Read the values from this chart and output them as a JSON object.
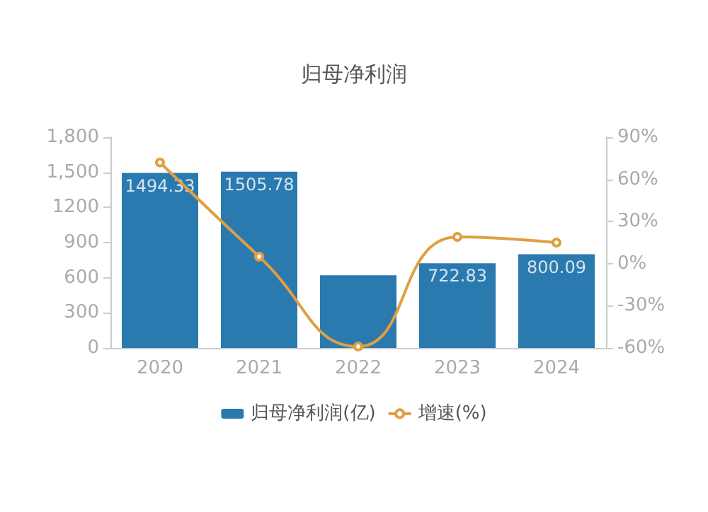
{
  "chart_data": {
    "type": "bar",
    "title": "归母净利润",
    "categories": [
      "2020",
      "2021",
      "2022",
      "2023",
      "2024"
    ],
    "series": [
      {
        "name": "归母净利润(亿)",
        "color": "#2a7ab0",
        "values": [
          1494.33,
          1505.78,
          620,
          722.83,
          800.09
        ],
        "value_labels": [
          "1494.33",
          "1505.78",
          null,
          "722.83",
          "800.09"
        ]
      },
      {
        "name": "增速(%)",
        "type": "line",
        "axis": "y2",
        "color": "#e0a040",
        "values": [
          72,
          5,
          -59,
          19,
          15
        ],
        "marker": "circle"
      }
    ],
    "ylim": [
      0,
      1800
    ],
    "yticks": [
      0,
      300,
      600,
      900,
      1200,
      {
        "value": 1500,
        "label": "1,500"
      },
      {
        "value": 1800,
        "label": "1,800"
      }
    ],
    "y2lim": [
      -60,
      90
    ],
    "y2ticks": [
      {
        "value": -60,
        "label": "-60%"
      },
      {
        "value": -30,
        "label": "-30%"
      },
      {
        "value": 0,
        "label": "0%"
      },
      {
        "value": 30,
        "label": "30%"
      },
      {
        "value": 60,
        "label": "60%"
      },
      {
        "value": 90,
        "label": "90%"
      }
    ],
    "grid": false,
    "legend": "bottom"
  }
}
